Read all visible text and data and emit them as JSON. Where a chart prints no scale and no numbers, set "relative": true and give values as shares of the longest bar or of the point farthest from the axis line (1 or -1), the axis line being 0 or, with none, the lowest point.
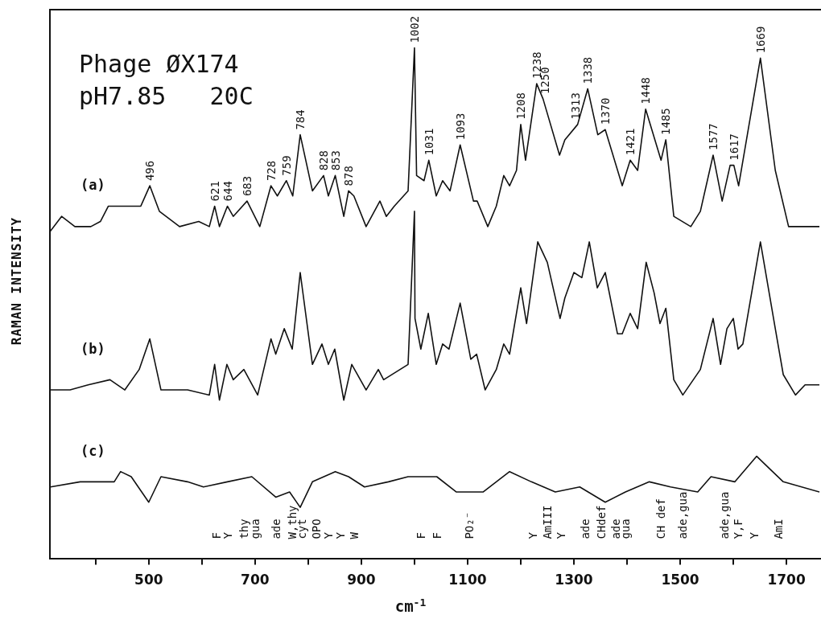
{
  "chart_data": {
    "type": "line",
    "title": "Phage ØX174",
    "subtitle": "pH7.85   20C",
    "xlabel": "cm$^{-1}$",
    "ylabel": "RAMAN INTENSITY",
    "relative": true,
    "marker": "none",
    "xlim": [
      314,
      1765
    ],
    "xticks": [
      {
        "value": 400,
        "label": null
      },
      500,
      {
        "value": 600,
        "label": null
      },
      700,
      {
        "value": 800,
        "label": null
      },
      900,
      {
        "value": 1000,
        "label": null
      },
      1100,
      {
        "value": 1200,
        "label": null
      },
      1300,
      {
        "value": 1400,
        "label": null
      },
      1500,
      {
        "value": 1600,
        "label": null
      },
      1700
    ],
    "series": [
      {
        "name": "(a)",
        "color": "#111111",
        "x": [
          314,
          336,
          361,
          391,
          409,
          424,
          458,
          485,
          502,
          520,
          558,
          594,
          614,
          624,
          633,
          648,
          659,
          685,
          709,
          730,
          742,
          759,
          771,
          785,
          808,
          829,
          838,
          851,
          867,
          876,
          886,
          909,
          935,
          947,
          962,
          988,
          1000,
          1004,
          1018,
          1027,
          1041,
          1053,
          1067,
          1086,
          1111,
          1118,
          1138,
          1154,
          1168,
          1179,
          1192,
          1200,
          1209,
          1230,
          1242,
          1273,
          1283,
          1307,
          1326,
          1345,
          1359,
          1391,
          1406,
          1420,
          1435,
          1464,
          1473,
          1488,
          1520,
          1538,
          1562,
          1579,
          1594,
          1601,
          1610,
          1651,
          1679,
          1704,
          1735,
          1762
        ],
        "values": [
          0.64,
          0.67,
          0.65,
          0.65,
          0.66,
          0.69,
          0.69,
          0.69,
          0.73,
          0.68,
          0.65,
          0.66,
          0.65,
          0.69,
          0.65,
          0.69,
          0.67,
          0.7,
          0.65,
          0.73,
          0.71,
          0.74,
          0.71,
          0.83,
          0.72,
          0.75,
          0.71,
          0.75,
          0.67,
          0.72,
          0.71,
          0.65,
          0.7,
          0.67,
          0.69,
          0.72,
          1.0,
          0.75,
          0.74,
          0.78,
          0.71,
          0.74,
          0.72,
          0.81,
          0.7,
          0.7,
          0.65,
          0.69,
          0.75,
          0.73,
          0.76,
          0.85,
          0.78,
          0.93,
          0.9,
          0.79,
          0.82,
          0.85,
          0.92,
          0.83,
          0.84,
          0.73,
          0.78,
          0.76,
          0.88,
          0.78,
          0.82,
          0.67,
          0.65,
          0.68,
          0.79,
          0.7,
          0.77,
          0.77,
          0.73,
          0.98,
          0.76,
          0.65,
          0.65,
          0.65
        ]
      },
      {
        "name": "(b)",
        "color": "#111111",
        "x": [
          314,
          352,
          386,
          427,
          455,
          482,
          502,
          523,
          573,
          614,
          624,
          633,
          647,
          659,
          679,
          705,
          730,
          739,
          755,
          770,
          785,
          808,
          826,
          838,
          850,
          867,
          882,
          909,
          932,
          942,
          988,
          1000,
          1001,
          1012,
          1026,
          1041,
          1053,
          1065,
          1086,
          1106,
          1117,
          1133,
          1154,
          1168,
          1179,
          1200,
          1211,
          1232,
          1250,
          1274,
          1283,
          1300,
          1315,
          1329,
          1344,
          1359,
          1382,
          1391,
          1406,
          1420,
          1436,
          1451,
          1462,
          1473,
          1488,
          1505,
          1538,
          1562,
          1576,
          1588,
          1600,
          1609,
          1618,
          1651,
          1679,
          1694,
          1717,
          1735,
          1762
        ],
        "values": [
          0.33,
          0.33,
          0.34,
          0.35,
          0.33,
          0.37,
          0.43,
          0.33,
          0.33,
          0.32,
          0.38,
          0.31,
          0.38,
          0.35,
          0.37,
          0.32,
          0.43,
          0.4,
          0.45,
          0.41,
          0.56,
          0.38,
          0.42,
          0.38,
          0.41,
          0.31,
          0.38,
          0.33,
          0.37,
          0.35,
          0.38,
          0.68,
          0.47,
          0.41,
          0.48,
          0.38,
          0.42,
          0.41,
          0.5,
          0.39,
          0.4,
          0.33,
          0.37,
          0.42,
          0.4,
          0.53,
          0.46,
          0.62,
          0.58,
          0.47,
          0.51,
          0.56,
          0.55,
          0.62,
          0.53,
          0.56,
          0.44,
          0.44,
          0.48,
          0.45,
          0.58,
          0.52,
          0.46,
          0.49,
          0.35,
          0.32,
          0.37,
          0.47,
          0.38,
          0.45,
          0.47,
          0.41,
          0.42,
          0.62,
          0.45,
          0.36,
          0.32,
          0.34,
          0.34
        ]
      },
      {
        "name": "(c)",
        "color": "#111111",
        "x": [
          315,
          371,
          435,
          447,
          467,
          500,
          523,
          573,
          603,
          648,
          694,
          739,
          765,
          785,
          808,
          851,
          876,
          906,
          951,
          988,
          997,
          1042,
          1079,
          1129,
          1179,
          1220,
          1265,
          1311,
          1359,
          1397,
          1442,
          1482,
          1533,
          1558,
          1603,
          1644,
          1664,
          1694,
          1762
        ],
        "values": [
          0.14,
          0.15,
          0.15,
          0.17,
          0.16,
          0.11,
          0.16,
          0.15,
          0.14,
          0.15,
          0.16,
          0.12,
          0.13,
          0.1,
          0.15,
          0.17,
          0.16,
          0.14,
          0.15,
          0.16,
          0.16,
          0.16,
          0.13,
          0.13,
          0.17,
          0.15,
          0.13,
          0.14,
          0.11,
          0.13,
          0.15,
          0.14,
          0.13,
          0.16,
          0.15,
          0.2,
          0.18,
          0.15,
          0.13
        ]
      }
    ],
    "annotations": [
      {
        "text": "496",
        "x": 502,
        "y": 0.73
      },
      {
        "text": "621",
        "x": 624,
        "y": 0.69
      },
      {
        "text": "644",
        "x": 648,
        "y": 0.69
      },
      {
        "text": "683",
        "x": 685,
        "y": 0.7
      },
      {
        "text": "728",
        "x": 730,
        "y": 0.73
      },
      {
        "text": "759",
        "x": 759,
        "y": 0.74
      },
      {
        "text": "784",
        "x": 785,
        "y": 0.83
      },
      {
        "text": "828",
        "x": 829,
        "y": 0.75
      },
      {
        "text": "853",
        "x": 851,
        "y": 0.75
      },
      {
        "text": "878",
        "x": 876,
        "y": 0.72
      },
      {
        "text": "1002",
        "x": 1000,
        "y": 1.0
      },
      {
        "text": "1031",
        "x": 1027,
        "y": 0.78
      },
      {
        "text": "1093",
        "x": 1086,
        "y": 0.81
      },
      {
        "text": "1208",
        "x": 1200,
        "y": 0.85
      },
      {
        "text": "1238",
        "x": 1230,
        "y": 0.93
      },
      {
        "text": "1250",
        "x": 1246,
        "y": 0.9
      },
      {
        "text": "1313",
        "x": 1303,
        "y": 0.85
      },
      {
        "text": "1338",
        "x": 1326,
        "y": 0.92
      },
      {
        "text": "1370",
        "x": 1359,
        "y": 0.84
      },
      {
        "text": "1421",
        "x": 1406,
        "y": 0.78
      },
      {
        "text": "1448",
        "x": 1435,
        "y": 0.88
      },
      {
        "text": "1485",
        "x": 1473,
        "y": 0.82
      },
      {
        "text": "1577",
        "x": 1562,
        "y": 0.79
      },
      {
        "text": "1617",
        "x": 1601,
        "y": 0.77
      },
      {
        "text": "1669",
        "x": 1651,
        "y": 0.98
      },
      "F",
      "Y",
      "thy",
      "gua",
      "ade",
      "W,thy",
      "cyt",
      "OPO",
      "Y",
      "Y",
      "W",
      "F",
      "F",
      "PO₂⁻",
      "Y",
      "AmIII",
      "Y",
      "ade",
      "CHdef",
      "ade",
      "gua",
      "CH def",
      "ade,gua",
      "ade,gua",
      "Y,F",
      "Y",
      "AmI"
    ]
  }
}
